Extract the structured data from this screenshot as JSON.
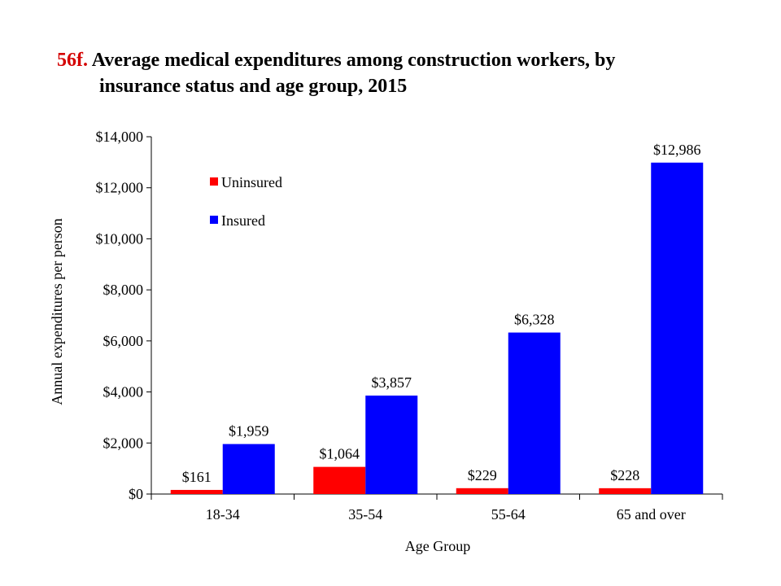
{
  "title": {
    "number": "56f.",
    "line1": "Average medical expenditures among construction workers, by",
    "line2": "insurance status and age group, 2015"
  },
  "chart_data": {
    "type": "bar",
    "title": "Average medical expenditures among construction workers, by insurance status and age group, 2015",
    "xlabel": "Age Group",
    "ylabel": "Annual expenditures per person",
    "categories": [
      "18-34",
      "35-54",
      "55-64",
      "65 and over"
    ],
    "ylim": [
      0,
      14000
    ],
    "yticks": [
      0,
      2000,
      4000,
      6000,
      8000,
      10000,
      12000,
      14000
    ],
    "ytick_labels": [
      "$0",
      "$2,000",
      "$4,000",
      "$6,000",
      "$8,000",
      "$10,000",
      "$12,000",
      "$14,000"
    ],
    "legend_position": "top-left",
    "grid": false,
    "series": [
      {
        "name": "Uninsured",
        "color": "#ff0000",
        "values": [
          161,
          1064,
          229,
          228
        ],
        "labels": [
          "$161",
          "$1,064",
          "$229",
          "$228"
        ]
      },
      {
        "name": "Insured",
        "color": "#0000ff",
        "values": [
          1959,
          3857,
          6328,
          12986
        ],
        "labels": [
          "$1,959",
          "$3,857",
          "$6,328",
          "$12,986"
        ]
      }
    ]
  }
}
